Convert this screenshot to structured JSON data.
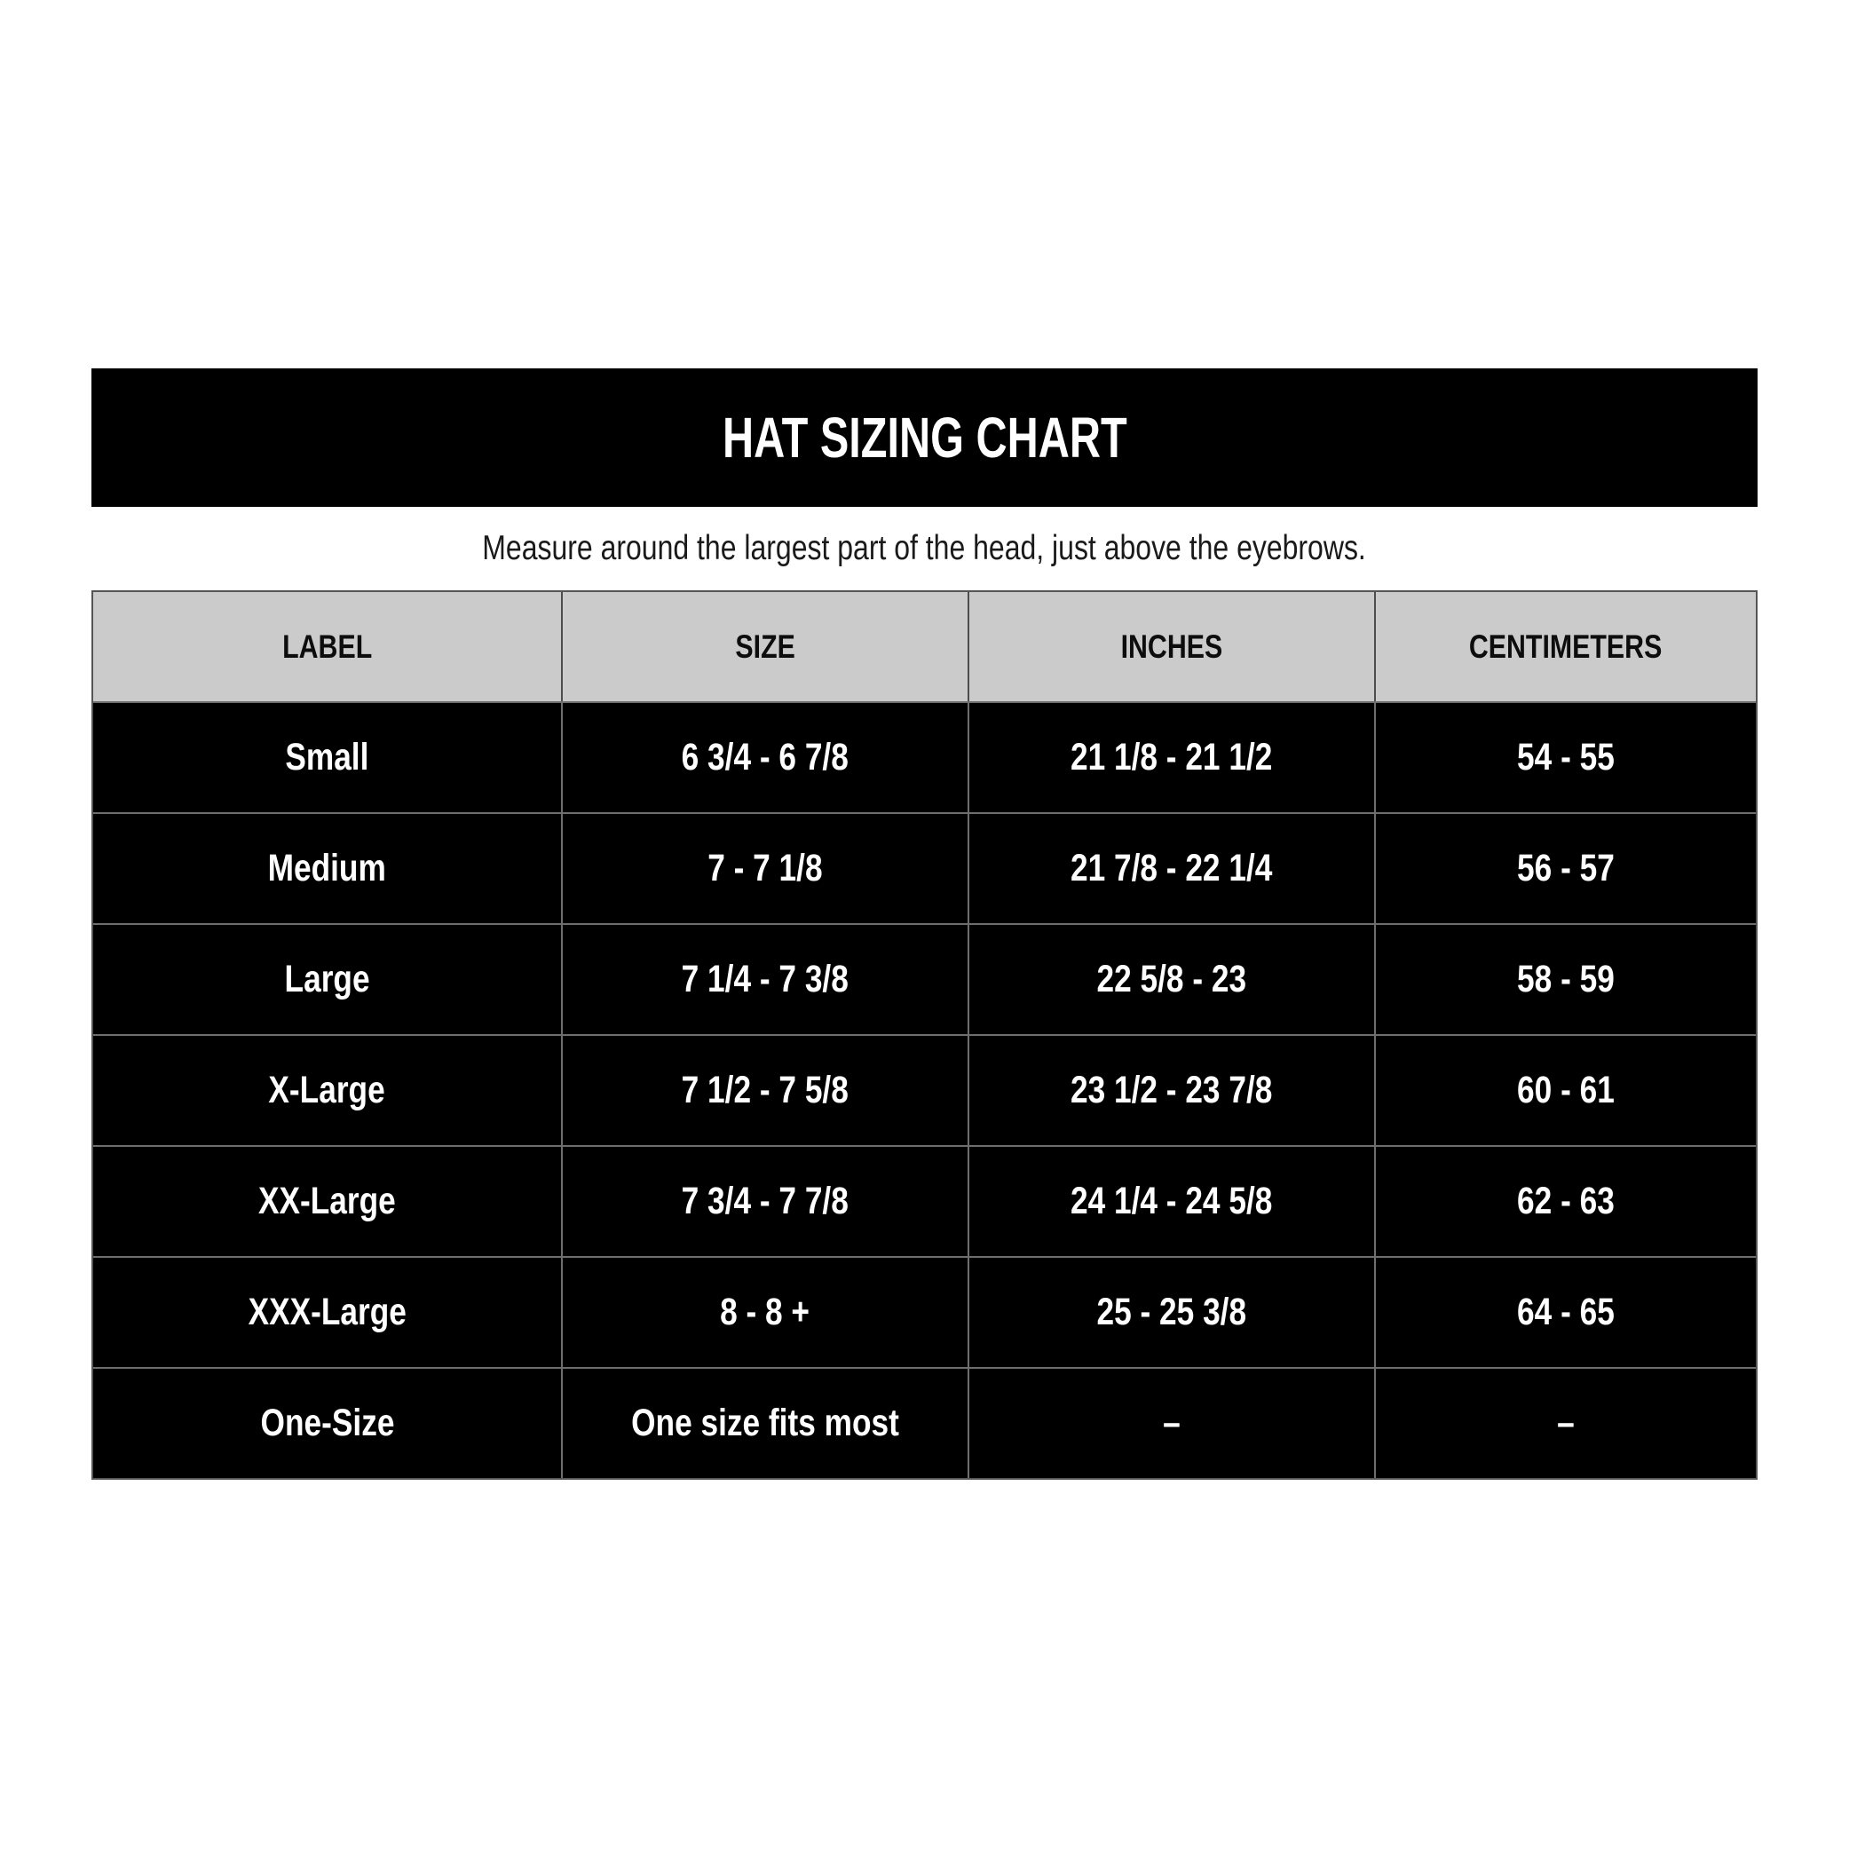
{
  "banner": {
    "title": "HAT SIZING CHART"
  },
  "subtitle": "Measure around the largest part of the head, just above the eyebrows.",
  "colors": {
    "banner_bg": "#000000",
    "banner_fg": "#ffffff",
    "header_bg": "#cbcbcb",
    "header_fg": "#0d0d0d",
    "row_bg": "#000000",
    "row_fg": "#ffffff",
    "divider": "#6e6e6e",
    "outer_border": "#555555"
  },
  "chart_data": {
    "type": "table",
    "title": "HAT SIZING CHART",
    "subtitle": "Measure around the largest part of the head, just above the eyebrows.",
    "columns": [
      "LABEL",
      "SIZE",
      "INCHES",
      "CENTIMETERS"
    ],
    "rows": [
      [
        "Small",
        "6 3/4 - 6 7/8",
        "21 1/8 - 21 1/2",
        "54 - 55"
      ],
      [
        "Medium",
        "7 - 7 1/8",
        "21 7/8 - 22 1/4",
        "56 - 57"
      ],
      [
        "Large",
        "7 1/4 - 7 3/8",
        "22 5/8 - 23",
        "58 - 59"
      ],
      [
        "X-Large",
        "7 1/2 - 7 5/8",
        "23 1/2 - 23 7/8",
        "60 - 61"
      ],
      [
        "XX-Large",
        "7 3/4 - 7 7/8",
        "24 1/4 - 24 5/8",
        "62 - 63"
      ],
      [
        "XXX-Large",
        "8 - 8 +",
        "25 - 25 3/8",
        "64 - 65"
      ],
      [
        "One-Size",
        "One size fits most",
        "–",
        "–"
      ]
    ]
  }
}
